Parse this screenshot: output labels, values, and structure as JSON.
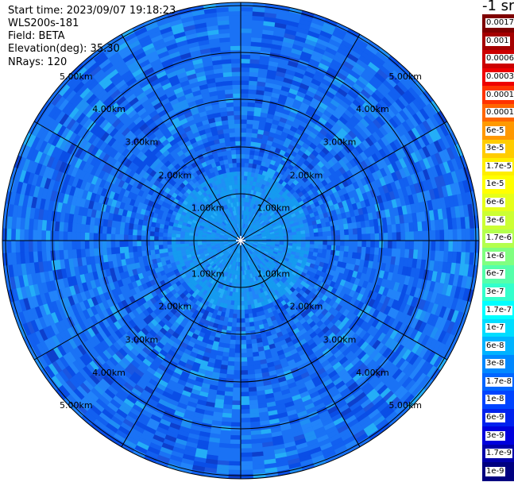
{
  "info": {
    "start_time": "Start time: 2023/09/07 19:18:23",
    "instrument": "WLS200s-181",
    "field": "Field: BETA",
    "elevation": "Elevation(deg): 35.30",
    "nrays": "NRays: 120"
  },
  "colorbar": {
    "unit": "-1 sr",
    "labels": [
      "0.0017",
      "0.001",
      "0.0006",
      "0.0003",
      "0.00017",
      "0.0001",
      "6e-5",
      "3e-5",
      "1.7e-5",
      "1e-5",
      "6e-6",
      "3e-6",
      "1.7e-6",
      "1e-6",
      "6e-7",
      "3e-7",
      "1.7e-7",
      "1e-7",
      "6e-8",
      "3e-8",
      "1.7e-8",
      "1e-8",
      "6e-9",
      "3e-9",
      "1.7e-9",
      "1e-9"
    ],
    "colors": [
      "#7f0000",
      "#a50000",
      "#cc0000",
      "#ee0000",
      "#ff3300",
      "#ff6600",
      "#ff9900",
      "#ffcc00",
      "#ffee00",
      "#ffff00",
      "#e6ff1a",
      "#ccff33",
      "#b3ff4d",
      "#80ff80",
      "#55ffaa",
      "#33ffcc",
      "#00ffff",
      "#00ddff",
      "#00b3ff",
      "#0088ff",
      "#0066ff",
      "#0044ff",
      "#0022ee",
      "#0000dd",
      "#0000aa",
      "#000080"
    ]
  },
  "plot": {
    "ring_labels": [
      "1.00km",
      "2.00km",
      "3.00km",
      "4.00km",
      "5.00km"
    ],
    "radar_palette": [
      "#0a4ee6",
      "#1260f0",
      "#1a72f5",
      "#2284fa",
      "#1f8ff5",
      "#159bf0",
      "#24aef7",
      "#1b56e0",
      "#0d3fcc"
    ]
  }
}
